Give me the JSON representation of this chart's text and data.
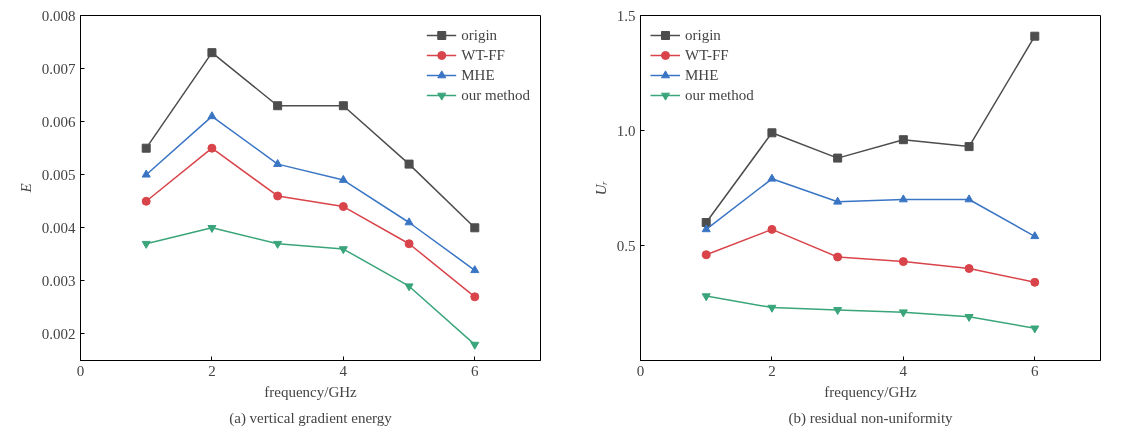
{
  "chart_data": [
    {
      "type": "line",
      "title": "(a) vertical gradient energy",
      "xlabel": "frequency/GHz",
      "ylabel": "E",
      "x": [
        1,
        2,
        3,
        4,
        5,
        6
      ],
      "xlim": [
        0,
        7
      ],
      "xticks": [
        0,
        2,
        4,
        6
      ],
      "ylim": [
        0.0015,
        0.008
      ],
      "yticks": [
        0.002,
        0.003,
        0.004,
        0.005,
        0.006,
        0.007,
        0.008
      ],
      "grid": false,
      "legend": "top right",
      "series": [
        {
          "name": "origin",
          "color": "#4d4d4d",
          "marker": "square",
          "values": [
            0.0055,
            0.0073,
            0.0063,
            0.0063,
            0.0052,
            0.004
          ]
        },
        {
          "name": "WT-FF",
          "color": "#d9444a",
          "marker": "circle",
          "values": [
            0.0045,
            0.0055,
            0.0046,
            0.0044,
            0.0037,
            0.0027
          ]
        },
        {
          "name": "MHE",
          "color": "#3a75c4",
          "marker": "triangle",
          "values": [
            0.005,
            0.0061,
            0.0052,
            0.0049,
            0.0041,
            0.0032
          ]
        },
        {
          "name": "our method",
          "color": "#3aa57a",
          "marker": "triangle",
          "values": [
            0.0037,
            0.004,
            0.0037,
            0.0036,
            0.0029,
            0.0018
          ]
        }
      ]
    },
    {
      "type": "line",
      "title": "(b) residual non-uniformity",
      "xlabel": "frequency/GHz",
      "ylabel": "Uᵣ",
      "x": [
        1,
        2,
        3,
        4,
        5,
        6
      ],
      "xlim": [
        0,
        7
      ],
      "xticks": [
        0,
        2,
        4,
        6
      ],
      "ylim": [
        0,
        1.5
      ],
      "yticks": [
        0.5,
        {
          "value": 1,
          "label": "1.0"
        },
        1.5
      ],
      "grid": false,
      "legend": "top left",
      "series": [
        {
          "name": "origin",
          "color": "#4d4d4d",
          "marker": "square",
          "values": [
            0.6,
            0.99,
            0.88,
            0.96,
            0.93,
            1.41
          ]
        },
        {
          "name": "WT-FF",
          "color": "#d9444a",
          "marker": "circle",
          "values": [
            0.46,
            0.57,
            0.45,
            0.43,
            0.4,
            0.34
          ]
        },
        {
          "name": "MHE",
          "color": "#3a75c4",
          "marker": "triangle",
          "values": [
            0.57,
            0.79,
            0.69,
            0.7,
            0.7,
            0.54
          ]
        },
        {
          "name": "our method",
          "color": "#3aa57a",
          "marker": "triangle",
          "values": [
            0.28,
            0.23,
            0.22,
            0.21,
            0.19,
            0.14
          ]
        }
      ]
    }
  ]
}
